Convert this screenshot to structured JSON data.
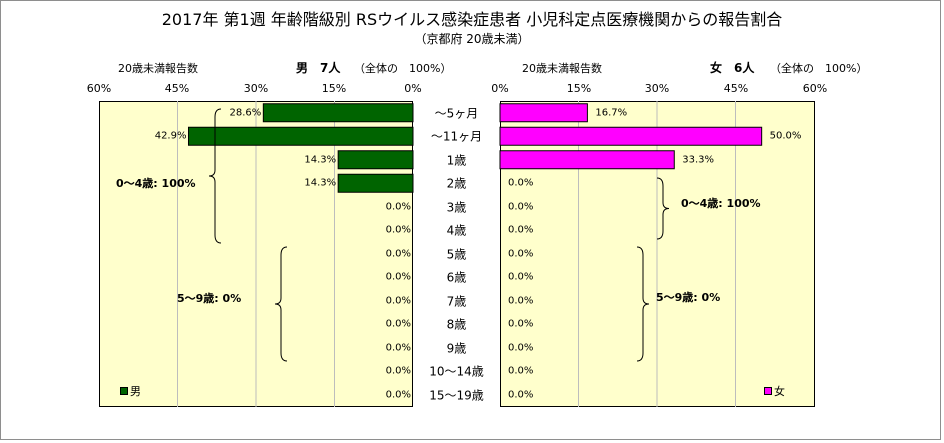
{
  "title": "2017年 第1週 年齢階級別 RSウイルス感染症患者 小児科定点医療機関からの報告割合",
  "subtitle": "（京都府 20歳未満）",
  "colors": {
    "male": "#006400",
    "female": "#ff00ff",
    "plot_bg": "#ffffcc",
    "grid": "#bdbdbd"
  },
  "left_panel": {
    "count_label": "20歳未満報告数",
    "sex_count": "男　7人",
    "basis": "（全体の　100%）",
    "ticks": [
      "60%",
      "45%",
      "30%",
      "15%",
      "0%"
    ],
    "legend": "男",
    "groups": [
      {
        "label": "0～4歳: 100%"
      },
      {
        "label": "5～9歳: 0%"
      }
    ]
  },
  "right_panel": {
    "count_label": "20歳未満報告数",
    "sex_count": "女　6人",
    "basis": "（全体の　100%）",
    "ticks": [
      "0%",
      "15%",
      "30%",
      "45%",
      "60%"
    ],
    "legend": "女",
    "groups": [
      {
        "label": "0～4歳: 100%"
      },
      {
        "label": "5～9歳: 0%"
      }
    ]
  },
  "chart_data": {
    "type": "bar",
    "orientation": "horizontal",
    "xlim": [
      0,
      60
    ],
    "grid": true,
    "categories": [
      "～5ヶ月",
      "～11ヶ月",
      "1歳",
      "2歳",
      "3歳",
      "4歳",
      "5歳",
      "6歳",
      "7歳",
      "8歳",
      "9歳",
      "10～14歳",
      "15～19歳"
    ],
    "series": [
      {
        "name": "男",
        "values": [
          28.6,
          42.9,
          14.3,
          14.3,
          0,
          0,
          0,
          0,
          0,
          0,
          0,
          0,
          0
        ],
        "labels": [
          "28.6%",
          "42.9%",
          "14.3%",
          "14.3%",
          "0.0%",
          "0.0%",
          "0.0%",
          "0.0%",
          "0.0%",
          "0.0%",
          "0.0%",
          "0.0%",
          "0.0%"
        ]
      },
      {
        "name": "女",
        "values": [
          16.7,
          50.0,
          33.3,
          0,
          0,
          0,
          0,
          0,
          0,
          0,
          0,
          0,
          0
        ],
        "labels": [
          "16.7%",
          "50.0%",
          "33.3%",
          "0.0%",
          "0.0%",
          "0.0%",
          "0.0%",
          "0.0%",
          "0.0%",
          "0.0%",
          "0.0%",
          "0.0%",
          "0.0%"
        ]
      }
    ]
  }
}
